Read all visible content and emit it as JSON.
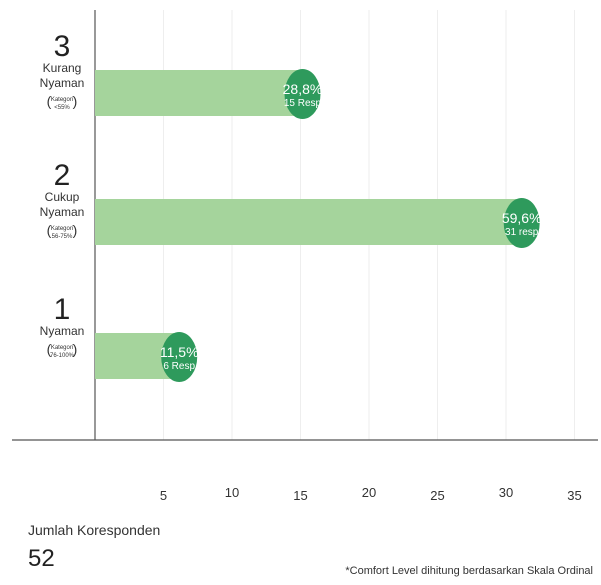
{
  "chart_data": {
    "type": "bar",
    "orientation": "horizontal",
    "categories": [
      {
        "number": "3",
        "name_lines": [
          "Kurang",
          "Nyaman"
        ],
        "kategori": "Kategori",
        "range": "<55%"
      },
      {
        "number": "2",
        "name_lines": [
          "Cukup",
          "Nyaman"
        ],
        "kategori": "Kategori",
        "range": "56-75%"
      },
      {
        "number": "1",
        "name_lines": [
          "Nyaman"
        ],
        "kategori": "Kategori",
        "range": "76-100%"
      }
    ],
    "values": [
      15,
      31,
      6
    ],
    "percent_labels": [
      "28,8%",
      "59,6%",
      "11,5%"
    ],
    "resp_labels": [
      "15 Resp",
      "31 resp",
      "6 Resp"
    ],
    "x_ticks": [
      5,
      10,
      15,
      20,
      25,
      30,
      35
    ],
    "xlim": [
      0,
      37
    ],
    "grid": true,
    "colors": {
      "bar": "#a5d49c",
      "badge": "#2e9a5c"
    }
  },
  "footer": {
    "total_label": "Jumlah Koresponden",
    "total_value": "52",
    "note": "*Comfort Level dihitung berdasarkan Skala  Ordinal"
  }
}
